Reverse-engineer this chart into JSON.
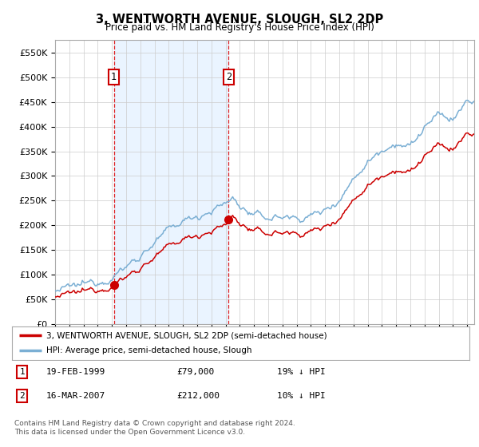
{
  "title": "3, WENTWORTH AVENUE, SLOUGH, SL2 2DP",
  "subtitle": "Price paid vs. HM Land Registry's House Price Index (HPI)",
  "sale1_price": 79000,
  "sale2_price": 212000,
  "legend_line1": "3, WENTWORTH AVENUE, SLOUGH, SL2 2DP (semi-detached house)",
  "legend_line2": "HPI: Average price, semi-detached house, Slough",
  "footnote": "Contains HM Land Registry data © Crown copyright and database right 2024.\nThis data is licensed under the Open Government Licence v3.0.",
  "line_color_red": "#cc0000",
  "line_color_blue": "#7bafd4",
  "vline_color": "#dd0000",
  "fill_color": "#ddeeff",
  "background_color": "#ffffff",
  "grid_color": "#cccccc",
  "ylim": [
    0,
    575000
  ],
  "yticks": [
    0,
    50000,
    100000,
    150000,
    200000,
    250000,
    300000,
    350000,
    400000,
    450000,
    500000,
    550000
  ],
  "xlim_start": 1995.0,
  "xlim_end": 2024.5
}
